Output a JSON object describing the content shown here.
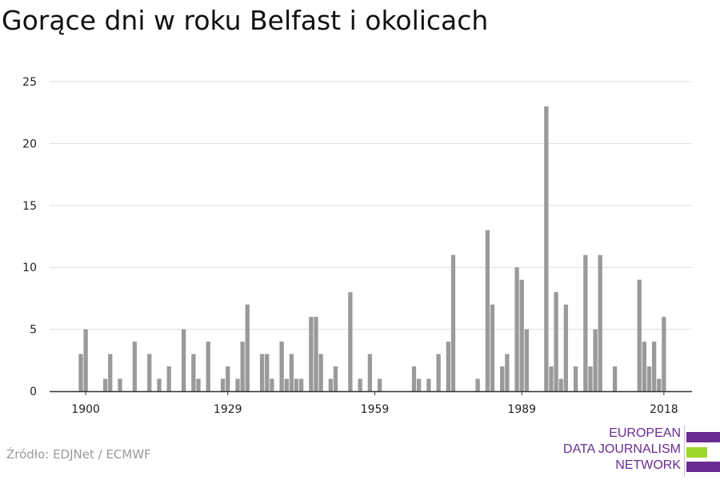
{
  "title": "Gorące dni w roku Belfast i okolicach",
  "source": "Źródło: EDJNet / ECMWF",
  "logo": {
    "lines": [
      "EUROPEAN",
      "DATA JOURNALISM",
      "NETWORK"
    ],
    "colors": {
      "purple": "#6a2c91",
      "green": "#9ed62a"
    }
  },
  "chart_data": {
    "type": "bar",
    "title": "Gorące dni w roku Belfast i okolicach",
    "xlabel": "",
    "ylabel": "",
    "ylim": [
      0,
      25
    ],
    "yticks": [
      0,
      5,
      10,
      15,
      20,
      25
    ],
    "xticks": [
      1900,
      1929,
      1959,
      1989,
      2018
    ],
    "grid": true,
    "bar_color": "#9a9a9a",
    "x": [
      1899,
      1900,
      1901,
      1902,
      1903,
      1904,
      1905,
      1906,
      1907,
      1908,
      1909,
      1910,
      1911,
      1912,
      1913,
      1914,
      1915,
      1916,
      1917,
      1918,
      1919,
      1920,
      1921,
      1922,
      1923,
      1924,
      1925,
      1926,
      1927,
      1928,
      1929,
      1930,
      1931,
      1932,
      1933,
      1934,
      1935,
      1936,
      1937,
      1938,
      1939,
      1940,
      1941,
      1942,
      1943,
      1944,
      1945,
      1946,
      1947,
      1948,
      1949,
      1950,
      1951,
      1952,
      1953,
      1954,
      1955,
      1956,
      1957,
      1958,
      1959,
      1960,
      1961,
      1962,
      1963,
      1964,
      1965,
      1966,
      1967,
      1968,
      1969,
      1970,
      1971,
      1972,
      1973,
      1974,
      1975,
      1976,
      1977,
      1978,
      1979,
      1980,
      1981,
      1982,
      1983,
      1984,
      1985,
      1986,
      1987,
      1988,
      1989,
      1990,
      1991,
      1992,
      1993,
      1994,
      1995,
      1996,
      1997,
      1998,
      1999,
      2000,
      2001,
      2002,
      2003,
      2004,
      2005,
      2006,
      2007,
      2008,
      2009,
      2010,
      2011,
      2012,
      2013,
      2014,
      2015,
      2016,
      2017,
      2018
    ],
    "values": [
      3,
      5,
      0,
      0,
      0,
      1,
      3,
      0,
      1,
      0,
      0,
      4,
      0,
      0,
      3,
      0,
      1,
      0,
      2,
      0,
      0,
      5,
      0,
      3,
      1,
      0,
      4,
      0,
      0,
      1,
      2,
      0,
      1,
      4,
      7,
      0,
      0,
      3,
      3,
      1,
      0,
      4,
      1,
      3,
      1,
      1,
      0,
      6,
      6,
      3,
      0,
      1,
      2,
      0,
      0,
      8,
      0,
      1,
      0,
      3,
      0,
      1,
      0,
      0,
      0,
      0,
      0,
      0,
      2,
      1,
      0,
      1,
      0,
      3,
      0,
      4,
      11,
      0,
      0,
      0,
      0,
      1,
      0,
      13,
      7,
      0,
      2,
      3,
      0,
      10,
      9,
      5,
      0,
      0,
      0,
      23,
      2,
      8,
      1,
      7,
      0,
      2,
      0,
      11,
      2,
      5,
      11,
      0,
      0,
      2,
      0,
      0,
      0,
      0,
      9,
      4,
      2,
      4,
      1,
      6
    ]
  }
}
